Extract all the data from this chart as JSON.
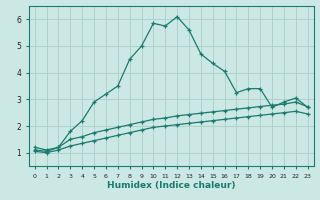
{
  "xlabel": "Humidex (Indice chaleur)",
  "bg_color": "#cce8e5",
  "grid_color": "#b0d0cc",
  "line_color": "#1a7a6e",
  "xlim": [
    -0.5,
    23.5
  ],
  "ylim": [
    0.5,
    6.5
  ],
  "xticks": [
    0,
    1,
    2,
    3,
    4,
    5,
    6,
    7,
    8,
    9,
    10,
    11,
    12,
    13,
    14,
    15,
    16,
    17,
    18,
    19,
    20,
    21,
    22,
    23
  ],
  "yticks": [
    1,
    2,
    3,
    4,
    5,
    6
  ],
  "series": {
    "line1_x": [
      0,
      1,
      2,
      3,
      4,
      5,
      6,
      7,
      8,
      9,
      10,
      11,
      12,
      13,
      14,
      15,
      16,
      17,
      18,
      19,
      20,
      21,
      22,
      23
    ],
    "line1_y": [
      1.2,
      1.1,
      1.2,
      1.8,
      2.2,
      2.9,
      3.2,
      3.5,
      4.5,
      5.0,
      5.85,
      5.75,
      6.1,
      5.6,
      4.7,
      4.35,
      4.05,
      3.25,
      3.4,
      3.4,
      2.7,
      2.9,
      3.05,
      2.7
    ],
    "line2_x": [
      0,
      1,
      2,
      3,
      4,
      5,
      6,
      7,
      8,
      9,
      10,
      11,
      12,
      13,
      14,
      15,
      16,
      17,
      18,
      19,
      20,
      21,
      22,
      23
    ],
    "line2_y": [
      1.1,
      1.05,
      1.2,
      1.5,
      1.6,
      1.75,
      1.85,
      1.95,
      2.05,
      2.15,
      2.25,
      2.3,
      2.38,
      2.43,
      2.48,
      2.53,
      2.58,
      2.63,
      2.68,
      2.73,
      2.78,
      2.82,
      2.9,
      2.72
    ],
    "line3_x": [
      0,
      1,
      2,
      3,
      4,
      5,
      6,
      7,
      8,
      9,
      10,
      11,
      12,
      13,
      14,
      15,
      16,
      17,
      18,
      19,
      20,
      21,
      22,
      23
    ],
    "line3_y": [
      1.05,
      1.0,
      1.1,
      1.25,
      1.35,
      1.45,
      1.55,
      1.65,
      1.75,
      1.85,
      1.95,
      2.0,
      2.05,
      2.1,
      2.15,
      2.2,
      2.25,
      2.3,
      2.35,
      2.4,
      2.45,
      2.5,
      2.55,
      2.45
    ]
  }
}
